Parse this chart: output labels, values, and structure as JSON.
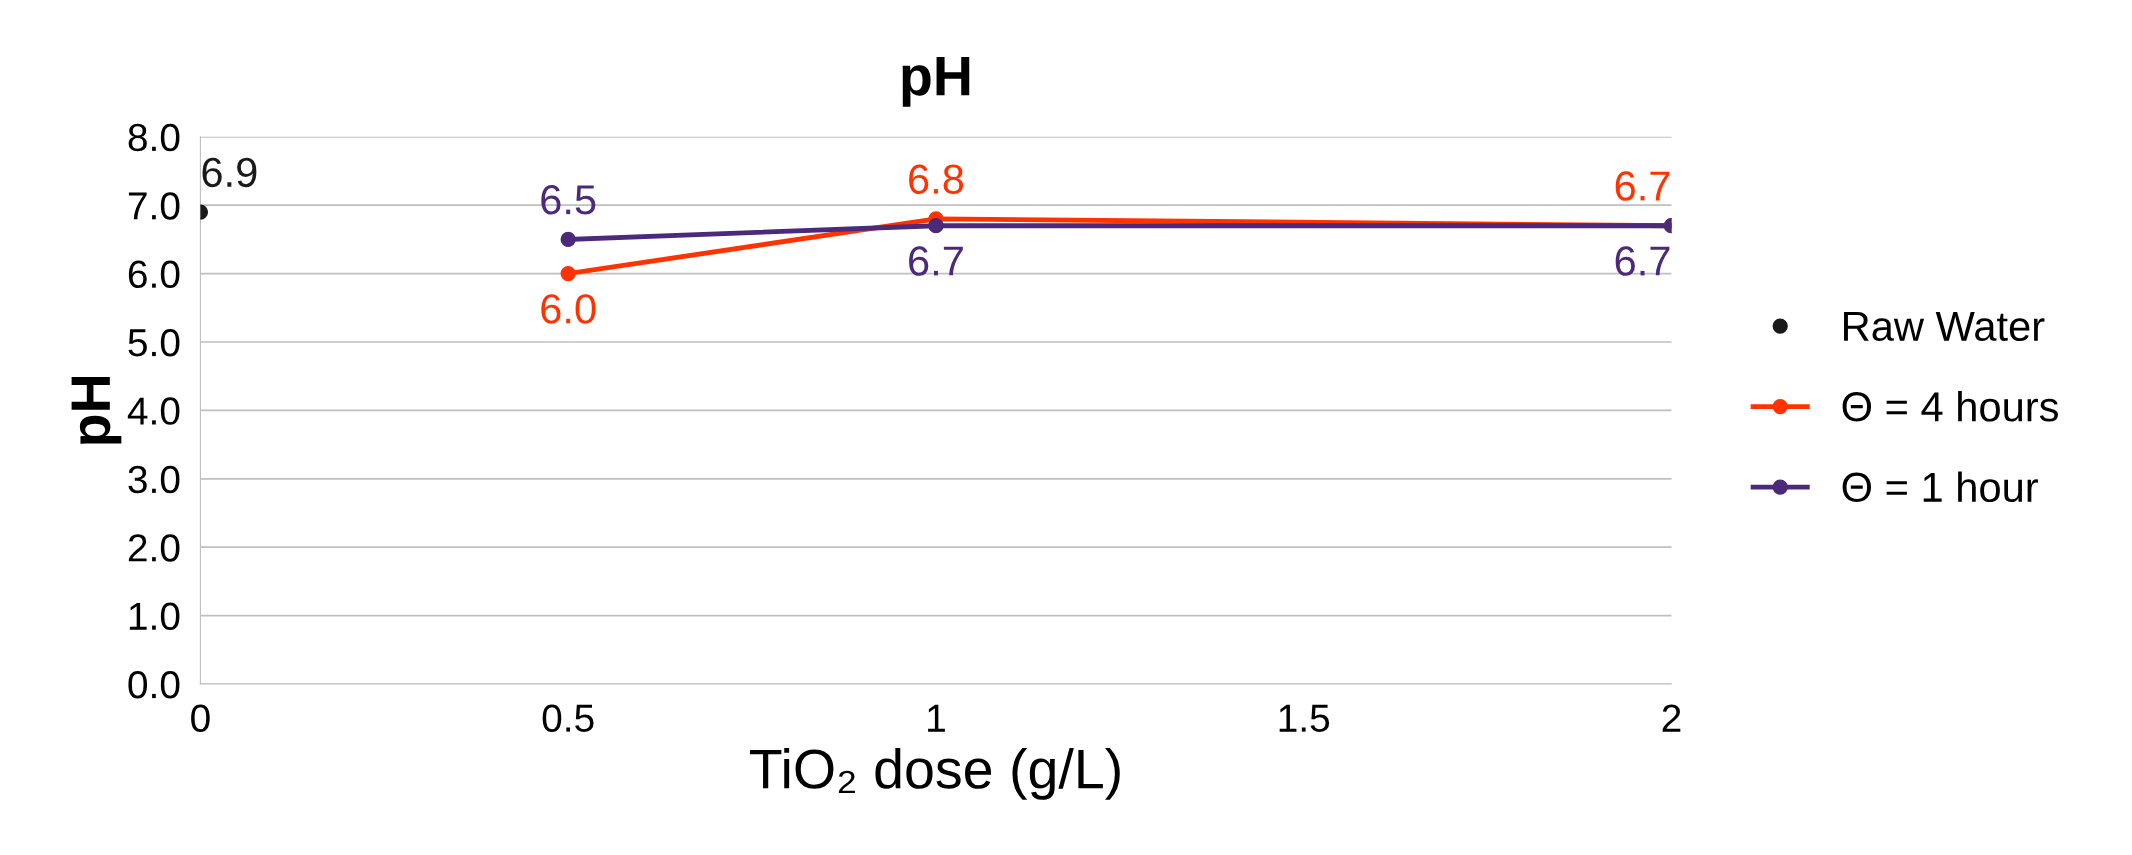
{
  "chart_data": {
    "type": "line",
    "title": "pH",
    "xlabel": "TiO₂ dose (g/L)",
    "ylabel": "pH",
    "series": [
      {
        "name": "Raw Water",
        "type": "scatter",
        "color": "#1a1a1a",
        "x": [
          0
        ],
        "values": [
          6.9
        ],
        "value_labels": [
          "6.9"
        ]
      },
      {
        "name": "Θ = 4 hours",
        "color": "#ff3300",
        "x": [
          0.5,
          1,
          2
        ],
        "values": [
          6.0,
          6.8,
          6.7
        ],
        "value_labels": [
          "6.0",
          "6.8",
          "6.7"
        ]
      },
      {
        "name": "Θ = 1 hour",
        "color": "#4b2a7a",
        "x": [
          0.5,
          1,
          2
        ],
        "values": [
          6.5,
          6.7,
          6.7
        ],
        "value_labels": [
          "6.5",
          "6.7",
          "6.7"
        ]
      }
    ],
    "xlim": [
      0,
      2
    ],
    "xticks": [
      0,
      0.5,
      1,
      1.5,
      2
    ],
    "ylim": [
      0,
      8
    ],
    "yticks": [
      {
        "value": 0,
        "label": "0.0"
      },
      {
        "value": 1,
        "label": "1.0"
      },
      {
        "value": 2,
        "label": "2.0"
      },
      {
        "value": 3,
        "label": "3.0"
      },
      {
        "value": 4,
        "label": "4.0"
      },
      {
        "value": 5,
        "label": "5.0"
      },
      {
        "value": 6,
        "label": "6.0"
      },
      {
        "value": 7,
        "label": "7.0"
      },
      {
        "value": 8,
        "label": "8.0"
      }
    ],
    "grid": "y",
    "legend": "right",
    "marker": "circle",
    "line_style": "solid"
  }
}
